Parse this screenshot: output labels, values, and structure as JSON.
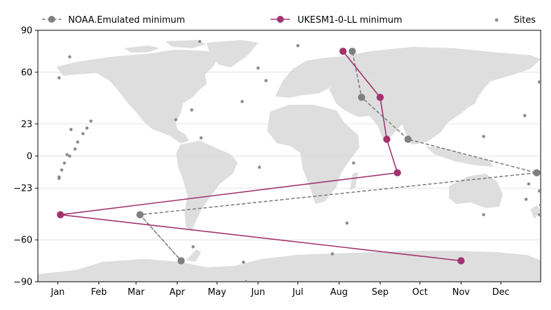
{
  "chart_data": {
    "type": "line",
    "title": "",
    "xlabel": "",
    "ylabel": "",
    "x_ticks": [
      "Jan",
      "Feb",
      "Mar",
      "Apr",
      "May",
      "Jun",
      "Jul",
      "Aug",
      "Sep",
      "Oct",
      "Nov",
      "Dec"
    ],
    "y_ticks": [
      90,
      60,
      23,
      0,
      -23,
      -60,
      -90
    ],
    "xlim": [
      "Dec 17",
      "Dec 31"
    ],
    "ylim": [
      -90,
      90
    ],
    "grid": "horizontal",
    "legend_placement": "top",
    "background": "world map (land in light gray)",
    "series": [
      {
        "name": "NOAA.Emulated minimum",
        "style": "dashed",
        "color": "#7f7f7f",
        "points": [
          {
            "date": "Mar 4",
            "lat": -42
          },
          {
            "date": "Apr 4",
            "lat": -75
          },
          {
            "date": "Mar 4",
            "lat": -42
          },
          {
            "date": "Dec 28",
            "lat": -12
          },
          {
            "date": "Sep 22",
            "lat": 12
          },
          {
            "date": "Aug 18",
            "lat": 42
          },
          {
            "date": "Aug 11",
            "lat": 75
          }
        ]
      },
      {
        "name": "UKESM1-0-LL minimum",
        "style": "solid",
        "color": "#a2336f",
        "points": [
          {
            "date": "Aug 4",
            "lat": 75
          },
          {
            "date": "Sep 1",
            "lat": 42
          },
          {
            "date": "Sep 6",
            "lat": 12
          },
          {
            "date": "Sep 14",
            "lat": -12
          },
          {
            "date": "Jan 3",
            "lat": -42
          },
          {
            "date": "Nov 1",
            "lat": -75
          }
        ]
      },
      {
        "name": "Sites",
        "style": "scatter",
        "color": "#8c8c8c",
        "points": [
          {
            "date": "Apr 18",
            "lat": 82
          },
          {
            "date": "Jan 10",
            "lat": 71
          },
          {
            "date": "Jul 1",
            "lat": 79
          },
          {
            "date": "Jun 1",
            "lat": 63
          },
          {
            "date": "Jun 7",
            "lat": 54
          },
          {
            "date": "Jan 2",
            "lat": 56
          },
          {
            "date": "Dec 30",
            "lat": 53
          },
          {
            "date": "May 20",
            "lat": 39
          },
          {
            "date": "Apr 12",
            "lat": 33
          },
          {
            "date": "Mar 31",
            "lat": 26
          },
          {
            "date": "Dec 19",
            "lat": 29
          },
          {
            "date": "Jan 26",
            "lat": 25
          },
          {
            "date": "Jan 23",
            "lat": 20
          },
          {
            "date": "Jan 11",
            "lat": 19
          },
          {
            "date": "Jan 20",
            "lat": 16
          },
          {
            "date": "Jan 16",
            "lat": 10
          },
          {
            "date": "Jan 14",
            "lat": 5
          },
          {
            "date": "Apr 19",
            "lat": 13
          },
          {
            "date": "Nov 18",
            "lat": 14
          },
          {
            "date": "Jan 8",
            "lat": 1
          },
          {
            "date": "Jan 10",
            "lat": 0
          },
          {
            "date": "Jan 6",
            "lat": -5
          },
          {
            "date": "Jan 4",
            "lat": -10
          },
          {
            "date": "Jan 2",
            "lat": -16
          },
          {
            "date": "Jan 2",
            "lat": -15
          },
          {
            "date": "Jun 2",
            "lat": -8
          },
          {
            "date": "Aug 12",
            "lat": -5
          },
          {
            "date": "Dec 22",
            "lat": -20
          },
          {
            "date": "Dec 30",
            "lat": -25
          },
          {
            "date": "Dec 20",
            "lat": -31
          },
          {
            "date": "Aug 7",
            "lat": -48
          },
          {
            "date": "Nov 18",
            "lat": -42
          },
          {
            "date": "Dec 30",
            "lat": -42
          },
          {
            "date": "Dec 31",
            "lat": -35
          },
          {
            "date": "Apr 13",
            "lat": -65
          },
          {
            "date": "Jul 27",
            "lat": -70
          },
          {
            "date": "May 21",
            "lat": -76
          },
          {
            "date": "May 23",
            "lat": -90
          }
        ]
      }
    ]
  }
}
